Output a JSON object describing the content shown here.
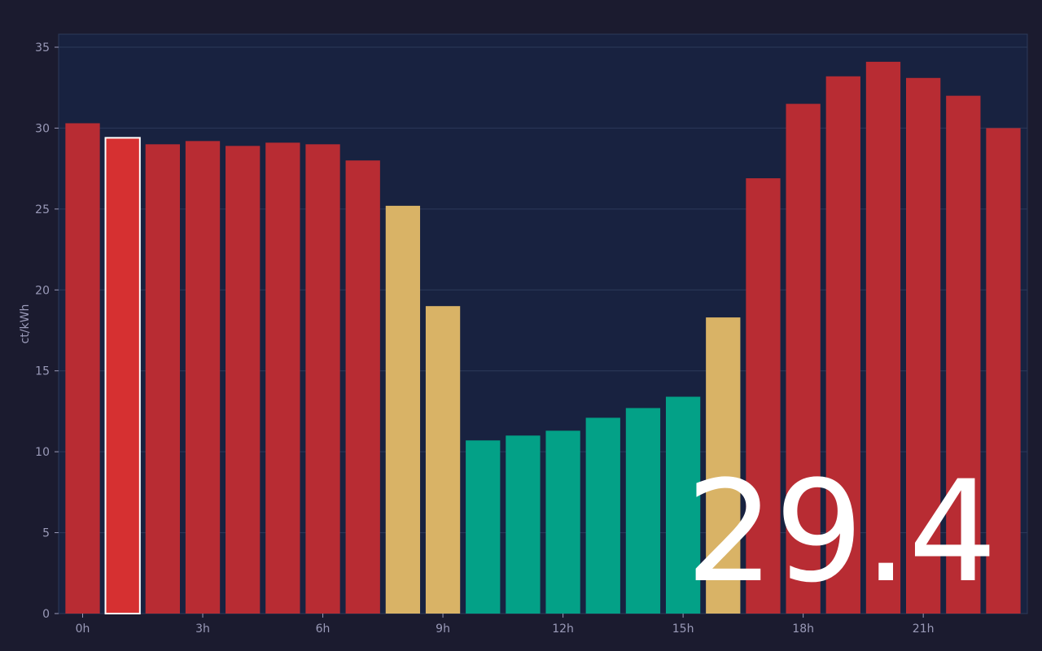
{
  "chart_data": {
    "type": "bar",
    "y_label": "ct/kWh",
    "categories": [
      "0h",
      null,
      null,
      "3h",
      null,
      null,
      "6h",
      null,
      null,
      "9h",
      null,
      null,
      "12h",
      null,
      null,
      "15h",
      null,
      null,
      "18h",
      null,
      null,
      "21h",
      null,
      null
    ],
    "values": [
      30.3,
      29.4,
      29.0,
      29.2,
      28.9,
      29.1,
      29.0,
      28.0,
      25.2,
      19.0,
      10.7,
      11.0,
      11.3,
      12.1,
      12.7,
      13.4,
      18.3,
      26.9,
      31.5,
      33.2,
      34.1,
      33.1,
      32.0,
      30.0
    ],
    "colors": [
      "#b82c33",
      "#d63031",
      "#b82c33",
      "#b82c33",
      "#b82c33",
      "#b82c33",
      "#b82c33",
      "#b82c33",
      "#d9b366",
      "#d9b366",
      "#03a187",
      "#03a187",
      "#03a187",
      "#03a187",
      "#03a187",
      "#03a187",
      "#d9b366",
      "#b82c33",
      "#b82c33",
      "#b82c33",
      "#b82c33",
      "#b82c33",
      "#b82c33",
      "#b82c33"
    ],
    "highlight": 1,
    "ylim": [
      0,
      35
    ],
    "yticks": [
      0,
      5,
      10,
      15,
      20,
      25,
      30,
      35
    ],
    "grid": true
  }
}
